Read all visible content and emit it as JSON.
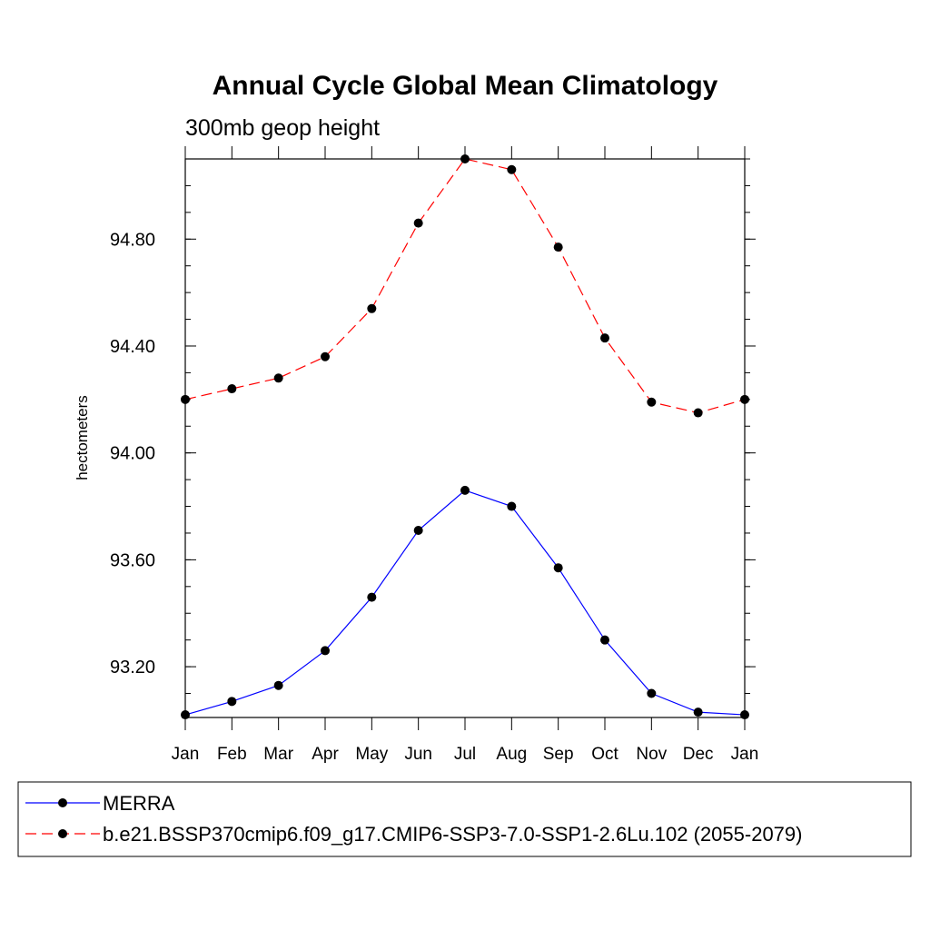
{
  "chart_data": {
    "type": "line",
    "title": "Annual Cycle Global Mean Climatology",
    "subtitle": "300mb geop height",
    "xlabel": "",
    "ylabel": "hectometers",
    "categories": [
      "Jan",
      "Feb",
      "Mar",
      "Apr",
      "May",
      "Jun",
      "Jul",
      "Aug",
      "Sep",
      "Oct",
      "Nov",
      "Dec",
      "Jan"
    ],
    "ylim": [
      93.01,
      95.1
    ],
    "yticks": [
      93.2,
      93.6,
      94.0,
      94.4,
      94.8
    ],
    "ytick_labels": [
      "93.20",
      "93.60",
      "94.00",
      "94.40",
      "94.80"
    ],
    "legend_position": "bottom",
    "series": [
      {
        "name": "MERRA",
        "color": "#0000ff",
        "dash": "solid",
        "values": [
          93.02,
          93.07,
          93.13,
          93.26,
          93.46,
          93.71,
          93.86,
          93.8,
          93.57,
          93.3,
          93.1,
          93.03,
          93.02
        ]
      },
      {
        "name": "b.e21.BSSP370cmip6.f09_g17.CMIP6-SSP3-7.0-SSP1-2.6Lu.102 (2055-2079)",
        "color": "#ff0000",
        "dash": "dashed",
        "values": [
          94.2,
          94.24,
          94.28,
          94.36,
          94.54,
          94.86,
          95.1,
          95.06,
          94.77,
          94.43,
          94.19,
          94.15,
          94.2
        ]
      }
    ]
  }
}
